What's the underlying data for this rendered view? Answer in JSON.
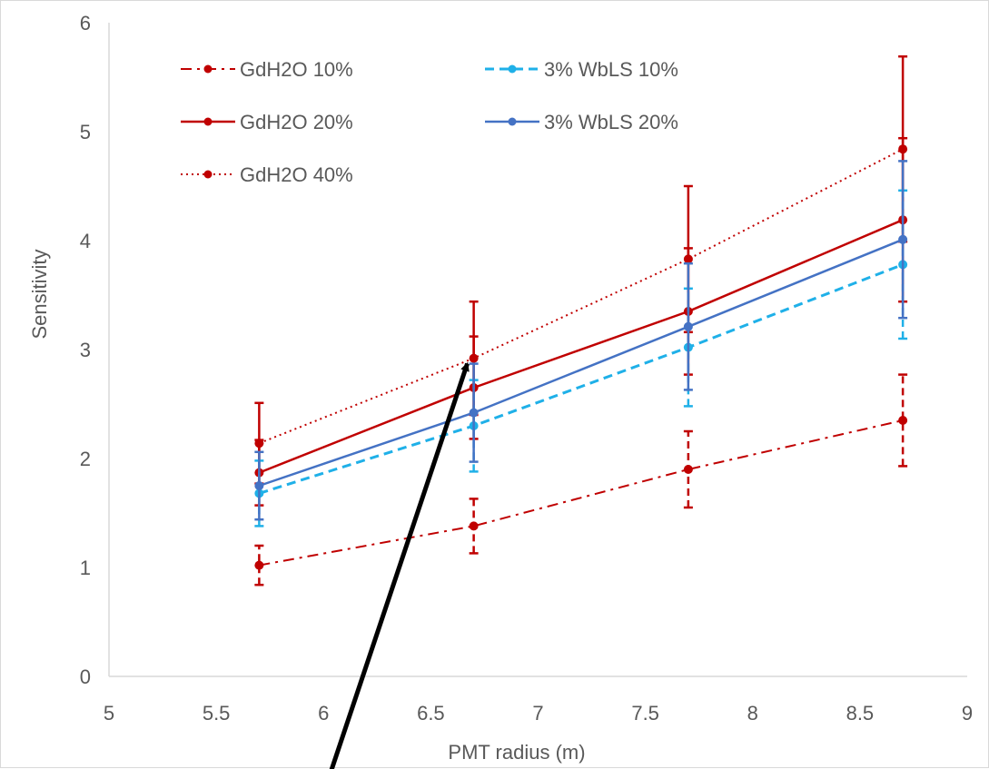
{
  "chart_data": {
    "type": "line",
    "title": "",
    "xlabel": "PMT radius (m)",
    "ylabel": "Sensitivity",
    "xlim": [
      5,
      9
    ],
    "ylim": [
      0,
      6
    ],
    "x_ticks": [
      "5",
      "5.5",
      "6",
      "6.5",
      "7",
      "7.5",
      "8",
      "8.5",
      "9"
    ],
    "y_ticks": [
      "0",
      "1",
      "2",
      "3",
      "4",
      "5",
      "6"
    ],
    "grid": false,
    "legend_position": "top-left",
    "x": [
      5.7,
      6.7,
      7.7,
      8.7
    ],
    "series": [
      {
        "name": "GdH2O 10%",
        "style": "dashdot",
        "color": "#c00000",
        "values": [
          1.02,
          1.38,
          1.9,
          2.35
        ],
        "err": [
          0.18,
          0.25,
          0.35,
          0.42
        ]
      },
      {
        "name": "GdH2O 20%",
        "style": "solid",
        "color": "#c00000",
        "values": [
          1.87,
          2.65,
          3.35,
          4.19
        ],
        "err": [
          0.3,
          0.47,
          0.58,
          0.75
        ]
      },
      {
        "name": "GdH2O 40%",
        "style": "dotted",
        "color": "#c00000",
        "values": [
          2.14,
          2.92,
          3.83,
          4.84
        ],
        "err": [
          0.37,
          0.52,
          0.67,
          0.85
        ]
      },
      {
        "name": "3% WbLS 10%",
        "style": "dashed",
        "color": "#1fb0e8",
        "values": [
          1.68,
          2.3,
          3.02,
          3.78
        ],
        "err": [
          0.3,
          0.42,
          0.54,
          0.68
        ]
      },
      {
        "name": "3% WbLS 20%",
        "style": "solid",
        "color": "#4472c4",
        "values": [
          1.75,
          2.42,
          3.21,
          4.01
        ],
        "err": [
          0.31,
          0.45,
          0.58,
          0.72
        ]
      }
    ]
  },
  "colors": {
    "gd": "#c00000",
    "wbls10": "#1fb0e8",
    "wbls20": "#4472c4",
    "axis_text": "#595959",
    "arrow": "#000000"
  },
  "annotation": {
    "type": "arrow",
    "from": [
      6.03,
      -0.9
    ],
    "to": [
      6.67,
      2.87
    ]
  }
}
